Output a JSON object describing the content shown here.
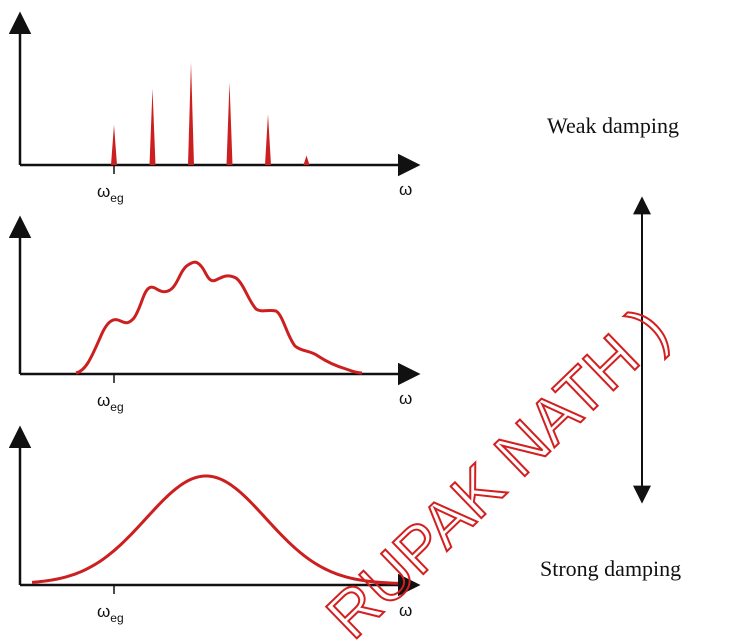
{
  "panels": [
    {
      "id": "weak",
      "x_label": "ω",
      "marker_label_main": "ω",
      "marker_label_sub": "eg",
      "shape": "discrete-lines",
      "line_heights": [
        0.38,
        0.72,
        0.97,
        0.78,
        0.48,
        0.09
      ]
    },
    {
      "id": "medium",
      "x_label": "ω",
      "marker_label_main": "ω",
      "marker_label_sub": "eg",
      "shape": "bumpy-envelope"
    },
    {
      "id": "strong",
      "x_label": "ω",
      "marker_label_main": "ω",
      "marker_label_sub": "eg",
      "shape": "smooth-gaussian"
    }
  ],
  "scale": {
    "top_label": "Weak damping",
    "bottom_label": "Strong damping"
  },
  "watermark": {
    "text": "RUPAK NATH )"
  },
  "colors": {
    "curve": "#cc1f1f",
    "axis": "#111111",
    "watermark": "#d31f1f"
  }
}
